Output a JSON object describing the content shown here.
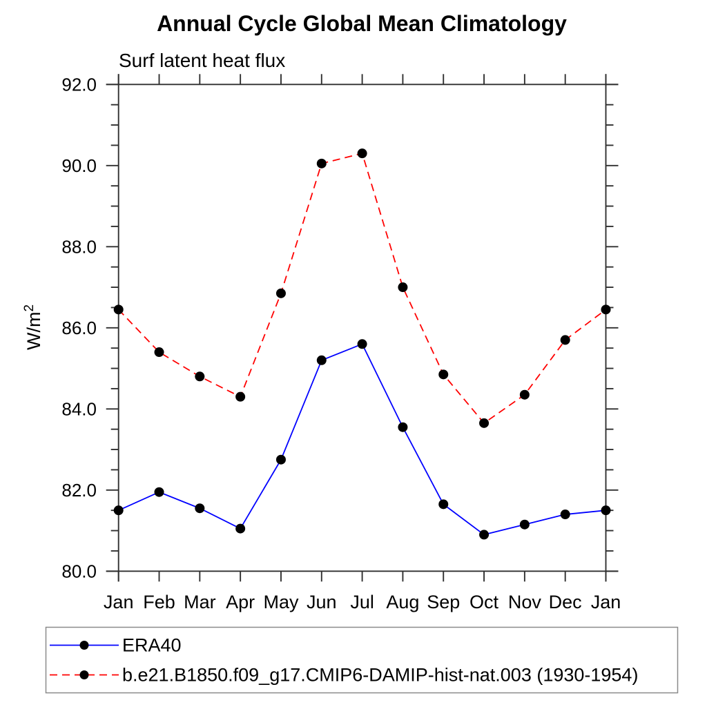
{
  "chart_data": {
    "type": "line",
    "title": "Annual Cycle Global Mean Climatology",
    "subtitle": "Surf latent heat flux",
    "ylabel": "W/m²",
    "ylabel_base": "W/m",
    "ylabel_sup": "2",
    "categories": [
      "Jan",
      "Feb",
      "Mar",
      "Apr",
      "May",
      "Jun",
      "Jul",
      "Aug",
      "Sep",
      "Oct",
      "Nov",
      "Dec",
      "Jan"
    ],
    "ylim": [
      80.0,
      92.0
    ],
    "ytick_major": 2.0,
    "ytick_minor": 0.5,
    "ytick_values": [
      80.0,
      82.0,
      84.0,
      86.0,
      88.0,
      90.0,
      92.0
    ],
    "ytick_labels": [
      "80.0",
      "82.0",
      "84.0",
      "86.0",
      "88.0",
      "90.0",
      "92.0"
    ],
    "grid": false,
    "legend_position": "bottom-left-box",
    "marker_color": "#000000",
    "series": [
      {
        "name": "ERA40",
        "color": "#0000ff",
        "style": "solid",
        "marker": "filled-circle",
        "values": [
          81.5,
          81.95,
          81.55,
          81.05,
          82.75,
          85.2,
          85.6,
          83.55,
          81.65,
          80.9,
          81.15,
          81.4,
          81.5
        ]
      },
      {
        "name": "b.e21.B1850.f09_g17.CMIP6-DAMIP-hist-nat.003 (1930-1954)",
        "color": "#ff0000",
        "style": "dashed",
        "marker": "filled-circle",
        "values": [
          86.45,
          85.4,
          84.8,
          84.3,
          86.85,
          90.05,
          90.3,
          87.0,
          84.85,
          83.65,
          84.35,
          85.7,
          86.45
        ]
      }
    ]
  }
}
